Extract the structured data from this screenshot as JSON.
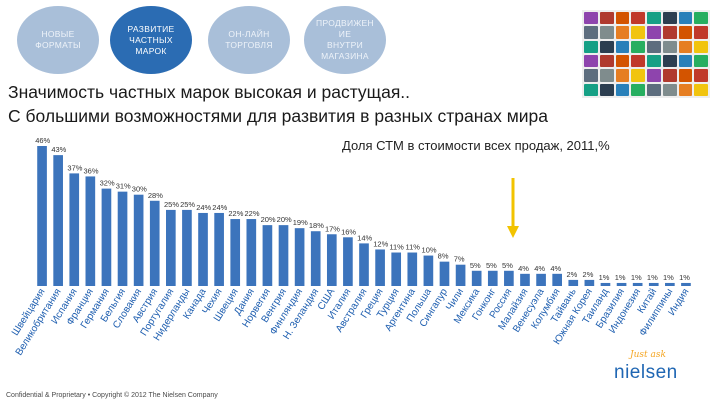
{
  "header": {
    "bubbles": [
      {
        "label": "НОВЫЕ\nФОРМАТЫ",
        "active": false
      },
      {
        "label": "РАЗВИТИЕ\nЧАСТНЫХ\nМАРОК",
        "active": true
      },
      {
        "label": "ОН-ЛАЙН\nТОРГОВЛЯ",
        "active": false
      },
      {
        "label": "ПРОДВИЖЕН\nИЕ\nВНУТРИ\nМАГАЗИНА",
        "active": false
      }
    ],
    "headline_1": "Значимость частных марок высокая и растущая..",
    "headline_2": "С большими возможностями для развития в разных странах мира"
  },
  "colors": {
    "bar": "#3c74bc",
    "accent": "#f2c300",
    "bubble_active": "#2b6cb3",
    "bubble_dim": "#a9bfd9"
  },
  "chart_data": {
    "type": "bar",
    "title": "Доля СТМ в стоимости всех продаж, 2011,%",
    "categories": [
      "Швейцария",
      "Великобритания",
      "Испания",
      "Франция",
      "Германия",
      "Бельгия",
      "Словакия",
      "Австрия",
      "Португалия",
      "Нидерланды",
      "Канада",
      "Чехия",
      "Швеция",
      "Дания",
      "Норвегия",
      "Венгрия",
      "Финляндия",
      "Н. Зеландия",
      "США",
      "Италия",
      "Австралия",
      "Греция",
      "Турция",
      "Аргентина",
      "Польша",
      "Сингапур",
      "Чили",
      "Мексика",
      "Гонконг",
      "Россия",
      "Малайзия",
      "Венесуэла",
      "Колумбия",
      "Тайвань",
      "Южная Корея",
      "Таиланд",
      "Бразилия",
      "Индонезия",
      "Китай",
      "Филиппины",
      "Индия"
    ],
    "values": [
      46,
      43,
      37,
      36,
      32,
      31,
      30,
      28,
      25,
      25,
      24,
      24,
      22,
      22,
      20,
      20,
      19,
      18,
      17,
      16,
      14,
      12,
      11,
      11,
      10,
      8,
      7,
      5,
      5,
      5,
      4,
      4,
      4,
      2,
      2,
      1,
      1,
      1,
      1,
      1,
      1
    ],
    "labels": [
      "46%",
      "43%",
      "37%",
      "36%",
      "32%",
      "31%",
      "30%",
      "28%",
      "25%",
      "25%",
      "24%",
      "24%",
      "22%",
      "22%",
      "20%",
      "20%",
      "19%",
      "18%",
      "17%",
      "16%",
      "14%",
      "12%",
      "11%",
      "11%",
      "10%",
      "8%",
      "7%",
      "5%",
      "5%",
      "5%",
      "4%",
      "4%",
      "4%",
      "2%",
      "2%",
      "1%",
      "1%",
      "1%",
      "1%",
      "1%",
      "1%"
    ],
    "ylim": [
      0,
      46
    ],
    "grid": false,
    "legend": "none"
  },
  "footer": {
    "text": "Confidential & Proprietary • Copyright © 2012 The Nielsen Company"
  },
  "logo": {
    "tagline": "Just ask",
    "wordmark": "nielsen"
  }
}
